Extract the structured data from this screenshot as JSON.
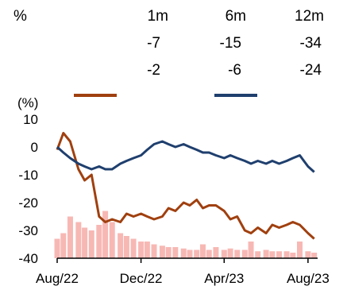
{
  "performance_table": {
    "unit_label": "%",
    "columns": [
      "1m",
      "6m",
      "12m"
    ],
    "rows": [
      {
        "values": [
          "-7",
          "-15",
          "-34"
        ]
      },
      {
        "values": [
          "-2",
          "-6",
          "-24"
        ]
      }
    ]
  },
  "chart_data": {
    "type": "line",
    "ylabel": "(%)",
    "ylim": [
      -40,
      10
    ],
    "yticks": [
      "10",
      "0",
      "-10",
      "-20",
      "-30",
      "-40"
    ],
    "xticks": [
      "Aug/22",
      "Dec/22",
      "Apr/23",
      "Aug/23"
    ],
    "grid": false,
    "legend": "top",
    "colors": {
      "series_a": "#a0400f",
      "series_b": "#1f3f6e",
      "volume": "#f7b8b4"
    },
    "x": [
      "2022-08-01",
      "2022-08-10",
      "2022-08-20",
      "2022-09-01",
      "2022-09-10",
      "2022-09-20",
      "2022-10-01",
      "2022-10-10",
      "2022-10-20",
      "2022-11-01",
      "2022-11-10",
      "2022-11-20",
      "2022-12-01",
      "2022-12-10",
      "2022-12-20",
      "2023-01-01",
      "2023-01-10",
      "2023-01-20",
      "2023-02-01",
      "2023-02-10",
      "2023-02-20",
      "2023-03-01",
      "2023-03-10",
      "2023-03-20",
      "2023-04-01",
      "2023-04-10",
      "2023-04-20",
      "2023-05-01",
      "2023-05-10",
      "2023-05-20",
      "2023-06-01",
      "2023-06-10",
      "2023-06-20",
      "2023-07-01",
      "2023-07-10",
      "2023-07-20",
      "2023-08-01",
      "2023-08-10"
    ],
    "series": [
      {
        "values": [
          -1,
          5,
          2,
          -8,
          -12,
          -10,
          -25,
          -27,
          -26,
          -27,
          -24,
          -25,
          -24,
          -25,
          -26,
          -25,
          -22,
          -23,
          -20,
          -21,
          -19,
          -22,
          -21,
          -21,
          -23,
          -26,
          -25,
          -30,
          -31,
          -29,
          -31,
          -28,
          -29,
          -28,
          -27,
          -28,
          -31,
          -33
        ]
      },
      {
        "values": [
          0,
          -2,
          -4,
          -6,
          -7,
          -8,
          -7,
          -8,
          -8,
          -6,
          -5,
          -4,
          -3,
          -1,
          1,
          2,
          1,
          0,
          1,
          0,
          -1,
          -2,
          -2,
          -3,
          -4,
          -3,
          -4,
          -5,
          -6,
          -5,
          -6,
          -5,
          -6,
          -5,
          -4,
          -3,
          -7,
          -9
        ]
      }
    ],
    "volume": [
      14,
      18,
      30,
      26,
      22,
      20,
      24,
      34,
      26,
      18,
      16,
      14,
      12,
      12,
      10,
      9,
      8,
      8,
      7,
      6,
      6,
      10,
      6,
      8,
      6,
      7,
      6,
      6,
      12,
      5,
      6,
      5,
      5,
      5,
      4,
      12,
      5,
      4
    ]
  }
}
